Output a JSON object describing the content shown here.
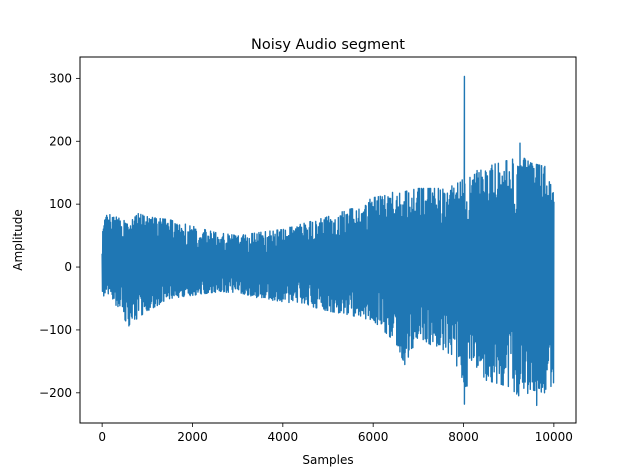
{
  "chart_data": {
    "type": "line",
    "title": "Noisy Audio segment",
    "xlabel": "Samples",
    "ylabel": "Amplitude",
    "xlim": [
      -490,
      10490
    ],
    "ylim": [
      -248,
      334
    ],
    "xticks": [
      0,
      2000,
      4000,
      6000,
      8000,
      10000
    ],
    "xtick_labels": [
      "0",
      "2000",
      "4000",
      "6000",
      "8000",
      "10000"
    ],
    "yticks": [
      -200,
      -100,
      0,
      100,
      200,
      300
    ],
    "ytick_labels": [
      "−200",
      "−100",
      "0",
      "100",
      "200",
      "300"
    ],
    "grid": false,
    "legend": "none",
    "series": [
      {
        "color": "#1f77b4",
        "n_samples": 10000,
        "x_range": [
          0,
          10000
        ],
        "envelope": [
          {
            "x": 0,
            "max": 60,
            "min": -60
          },
          {
            "x": 100,
            "max": 85,
            "min": -40
          },
          {
            "x": 300,
            "max": 80,
            "min": -60
          },
          {
            "x": 600,
            "max": 70,
            "min": -95
          },
          {
            "x": 800,
            "max": 85,
            "min": -80
          },
          {
            "x": 1000,
            "max": 80,
            "min": -70
          },
          {
            "x": 1500,
            "max": 75,
            "min": -50
          },
          {
            "x": 2000,
            "max": 65,
            "min": -45
          },
          {
            "x": 2500,
            "max": 55,
            "min": -40
          },
          {
            "x": 3000,
            "max": 50,
            "min": -40
          },
          {
            "x": 3500,
            "max": 55,
            "min": -50
          },
          {
            "x": 4000,
            "max": 60,
            "min": -55
          },
          {
            "x": 4500,
            "max": 70,
            "min": -60
          },
          {
            "x": 5000,
            "max": 80,
            "min": -70
          },
          {
            "x": 5400,
            "max": 90,
            "min": -75
          },
          {
            "x": 5700,
            "max": 100,
            "min": -80
          },
          {
            "x": 6000,
            "max": 110,
            "min": -85
          },
          {
            "x": 6500,
            "max": 120,
            "min": -120
          },
          {
            "x": 6700,
            "max": 120,
            "min": -155
          },
          {
            "x": 7000,
            "max": 125,
            "min": -110
          },
          {
            "x": 7500,
            "max": 125,
            "min": -135
          },
          {
            "x": 7800,
            "max": 130,
            "min": -140
          },
          {
            "x": 8000,
            "max": 140,
            "min": -215
          },
          {
            "x": 8200,
            "max": 150,
            "min": -150
          },
          {
            "x": 8500,
            "max": 160,
            "min": -180
          },
          {
            "x": 9000,
            "max": 170,
            "min": -190
          },
          {
            "x": 9300,
            "max": 175,
            "min": -210
          },
          {
            "x": 9500,
            "max": 165,
            "min": -195
          },
          {
            "x": 9800,
            "max": 160,
            "min": -200
          },
          {
            "x": 10000,
            "max": 115,
            "min": -185
          }
        ],
        "peaks": [
          {
            "x": 8020,
            "y": 303
          },
          {
            "x": 8020,
            "y": -218
          },
          {
            "x": 9620,
            "y": -220
          },
          {
            "x": 6700,
            "y": -155
          },
          {
            "x": 9250,
            "y": 197
          }
        ]
      }
    ]
  }
}
